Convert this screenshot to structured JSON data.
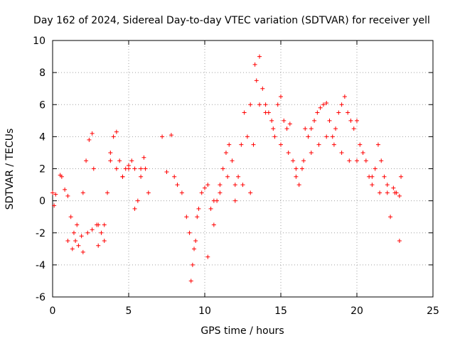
{
  "chart_data": {
    "type": "scatter",
    "title": "Day 162 of 2024, Sidereal Day-to-day VTEC variation (SDTVAR) for receiver yell",
    "xlabel": "GPS time / hours",
    "ylabel": "SDTVAR / TECUs",
    "xlim": [
      0,
      25
    ],
    "ylim": [
      -6,
      10
    ],
    "xticks": [
      0,
      5,
      10,
      15,
      20,
      25
    ],
    "yticks": [
      -6,
      -4,
      -2,
      0,
      2,
      4,
      6,
      8,
      10
    ],
    "grid": true,
    "marker": "+",
    "color": "#ff0000",
    "series": [
      {
        "name": "SDTVAR",
        "x": [
          0.0,
          0.1,
          0.2,
          0.5,
          0.6,
          0.8,
          1.0,
          1.2,
          1.4,
          1.5,
          1.7,
          1.9,
          2.0,
          2.2,
          2.4,
          2.6,
          2.7,
          2.9,
          3.0,
          3.2,
          3.4,
          3.6,
          3.8,
          4.0,
          4.2,
          4.4,
          4.6,
          4.8,
          5.0,
          5.2,
          5.4,
          5.6,
          5.8,
          6.0,
          6.1,
          6.3,
          7.2,
          7.5,
          7.8,
          8.0,
          8.2,
          8.5,
          8.8,
          9.0,
          9.2,
          9.4,
          9.6,
          9.8,
          10.0,
          10.2,
          10.4,
          10.6,
          10.8,
          11.0,
          11.2,
          11.4,
          11.6,
          11.8,
          12.0,
          12.2,
          12.4,
          12.6,
          12.8,
          13.0,
          13.2,
          13.4,
          13.6,
          13.8,
          14.0,
          14.2,
          14.4,
          14.6,
          14.8,
          15.0,
          15.2,
          15.4,
          15.6,
          15.8,
          16.0,
          16.2,
          16.4,
          16.6,
          16.8,
          17.0,
          17.2,
          17.4,
          17.6,
          17.8,
          18.0,
          18.2,
          18.4,
          18.6,
          18.8,
          19.0,
          19.2,
          19.4,
          19.6,
          19.8,
          20.0,
          20.2,
          20.4,
          20.6,
          20.8,
          21.0,
          21.2,
          21.4,
          21.6,
          21.8,
          22.0,
          22.2,
          22.4,
          22.6,
          22.8,
          22.9,
          1.0,
          1.3,
          1.6,
          2.0,
          2.3,
          2.6,
          3.0,
          3.4,
          3.8,
          4.2,
          4.6,
          5.0,
          5.4,
          5.8,
          9.1,
          9.3,
          9.5,
          10.2,
          10.6,
          11.0,
          11.5,
          12.0,
          12.5,
          13.0,
          13.3,
          13.6,
          14.0,
          14.5,
          15.0,
          15.5,
          16.0,
          16.5,
          17.0,
          17.5,
          18.0,
          18.5,
          19.0,
          19.5,
          20.0,
          21.0,
          21.5,
          22.0,
          22.5,
          22.8
        ],
        "y": [
          0.5,
          -0.3,
          0.4,
          1.6,
          1.5,
          0.7,
          0.3,
          -1.0,
          -2.0,
          -2.5,
          -2.8,
          -2.2,
          0.5,
          2.5,
          3.8,
          4.2,
          2.0,
          -1.5,
          -2.8,
          -2.0,
          -1.5,
          0.5,
          2.5,
          4.0,
          4.3,
          2.5,
          1.5,
          2.0,
          2.2,
          2.5,
          2.0,
          0.0,
          1.5,
          2.7,
          2.0,
          0.5,
          4.0,
          1.8,
          4.1,
          1.5,
          1.0,
          0.5,
          -1.0,
          -2.0,
          -4.0,
          -2.5,
          -0.5,
          0.5,
          0.8,
          1.0,
          -0.5,
          -1.5,
          0.0,
          1.0,
          2.0,
          3.0,
          3.5,
          2.5,
          1.0,
          1.5,
          3.5,
          5.5,
          4.0,
          0.5,
          3.5,
          7.5,
          9.0,
          7.0,
          6.0,
          5.5,
          5.0,
          4.0,
          6.0,
          6.5,
          5.0,
          4.5,
          4.8,
          2.5,
          1.5,
          1.0,
          2.0,
          4.5,
          4.0,
          4.5,
          5.0,
          5.5,
          5.8,
          6.0,
          6.1,
          5.0,
          4.0,
          4.5,
          5.5,
          6.0,
          6.5,
          5.5,
          5.0,
          4.5,
          5.0,
          3.5,
          3.0,
          2.5,
          1.5,
          1.0,
          2.0,
          3.5,
          2.5,
          1.5,
          0.5,
          -1.0,
          0.8,
          0.5,
          -2.5,
          1.5,
          -2.5,
          -3.0,
          -1.5,
          -3.2,
          -2.0,
          -1.8,
          -1.5,
          -2.5,
          3.0,
          2.0,
          1.5,
          2.0,
          -0.5,
          2.0,
          -5.0,
          -3.0,
          -1.0,
          -3.5,
          0.0,
          0.5,
          1.5,
          0.0,
          1.0,
          6.0,
          8.5,
          6.0,
          5.5,
          4.5,
          3.5,
          3.0,
          2.0,
          2.5,
          3.0,
          3.5,
          4.0,
          3.5,
          3.0,
          2.5,
          2.5,
          1.5,
          0.5,
          1.0,
          0.5,
          0.3
        ]
      }
    ]
  }
}
